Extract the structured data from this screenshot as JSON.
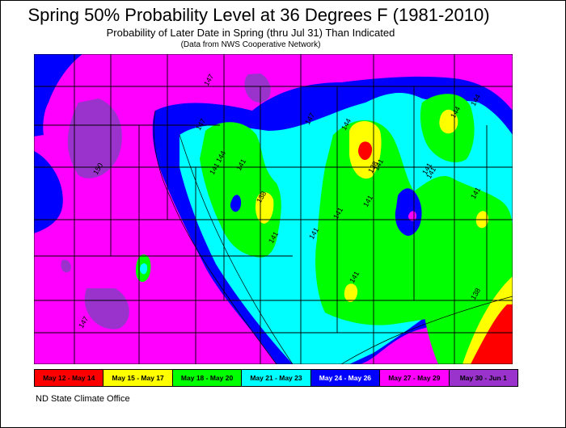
{
  "title": "Spring 50% Probability Level at 36 Degrees F (1981-2010)",
  "subtitle": "Probability of Later Date in Spring (thru Jul 31) Than Indicated",
  "source_note": "(Data from NWS Cooperative Network)",
  "credit": "ND State Climate Office",
  "legend": [
    {
      "label": "May 12 - May 14",
      "color": "#ff0000",
      "text_color": "#000000"
    },
    {
      "label": "May 15 - May 17",
      "color": "#ffff00",
      "text_color": "#000000"
    },
    {
      "label": "May 18 - May 20",
      "color": "#00ff00",
      "text_color": "#000000"
    },
    {
      "label": "May 21 - May 23",
      "color": "#00ffff",
      "text_color": "#000000"
    },
    {
      "label": "May 24 - May 26",
      "color": "#0000ff",
      "text_color": "#ffffff"
    },
    {
      "label": "May 27 - May 29",
      "color": "#ff00ff",
      "text_color": "#000000"
    },
    {
      "label": "May 30 - Jun 1",
      "color": "#9933cc",
      "text_color": "#000000"
    }
  ],
  "contour_labels": [
    "147",
    "147",
    "144",
    "147",
    "144",
    "150",
    "141",
    "141",
    "138",
    "141",
    "141",
    "141",
    "138",
    "141",
    "141",
    "144",
    "141",
    "141",
    "144",
    "141",
    "138",
    "141",
    "147"
  ]
}
